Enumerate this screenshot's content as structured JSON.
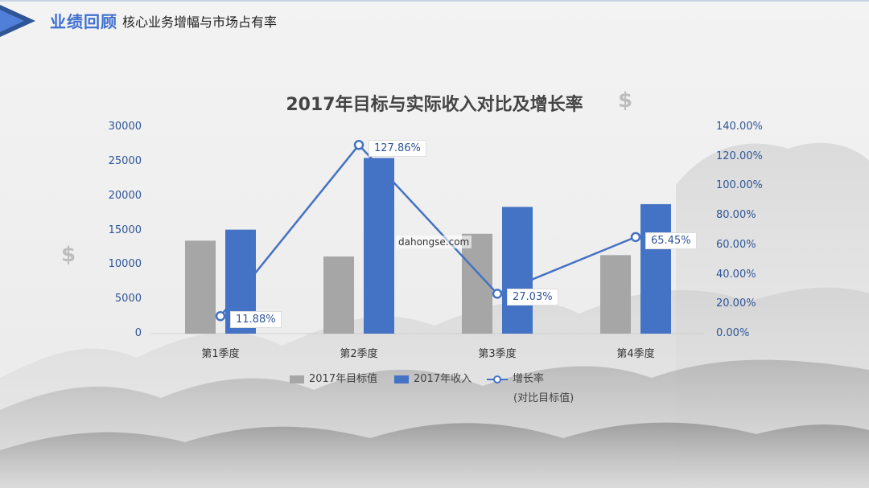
{
  "header": {
    "title": "业绩回顾",
    "subtitle": "核心业务增幅与市场占有率"
  },
  "watermark": "dahongse.com",
  "colors": {
    "target": "#a6a6a6",
    "actual": "#4472c4",
    "rate_line": "#4472c4",
    "accent": "#3f6fd0"
  },
  "chart_data": {
    "type": "bar",
    "title": "2017年目标与实际收入对比及增长率",
    "categories": [
      "第1季度",
      "第2季度",
      "第3季度",
      "第4季度"
    ],
    "series": [
      {
        "name": "2017年目标值",
        "type": "bar",
        "axis": "left",
        "values": [
          13500,
          11200,
          14500,
          11400
        ]
      },
      {
        "name": "2017年收入",
        "type": "bar",
        "axis": "left",
        "values": [
          15100,
          25500,
          18400,
          18800
        ]
      },
      {
        "name": "增长率",
        "name_note": "(对比目标值)",
        "type": "line",
        "axis": "right",
        "values": [
          11.88,
          127.86,
          27.03,
          65.45
        ],
        "labels": [
          "11.88%",
          "127.86%",
          "27.03%",
          "65.45%"
        ]
      }
    ],
    "y_left": {
      "min": 0,
      "max": 30000,
      "ticks": [
        "0",
        "5000",
        "10000",
        "15000",
        "20000",
        "25000",
        "30000"
      ]
    },
    "y_right": {
      "min": 0,
      "max": 140,
      "ticks": [
        "0.00%",
        "20.00%",
        "40.00%",
        "60.00%",
        "80.00%",
        "100.00%",
        "120.00%",
        "140.00%"
      ]
    },
    "grid": false,
    "legend": "bottom"
  }
}
